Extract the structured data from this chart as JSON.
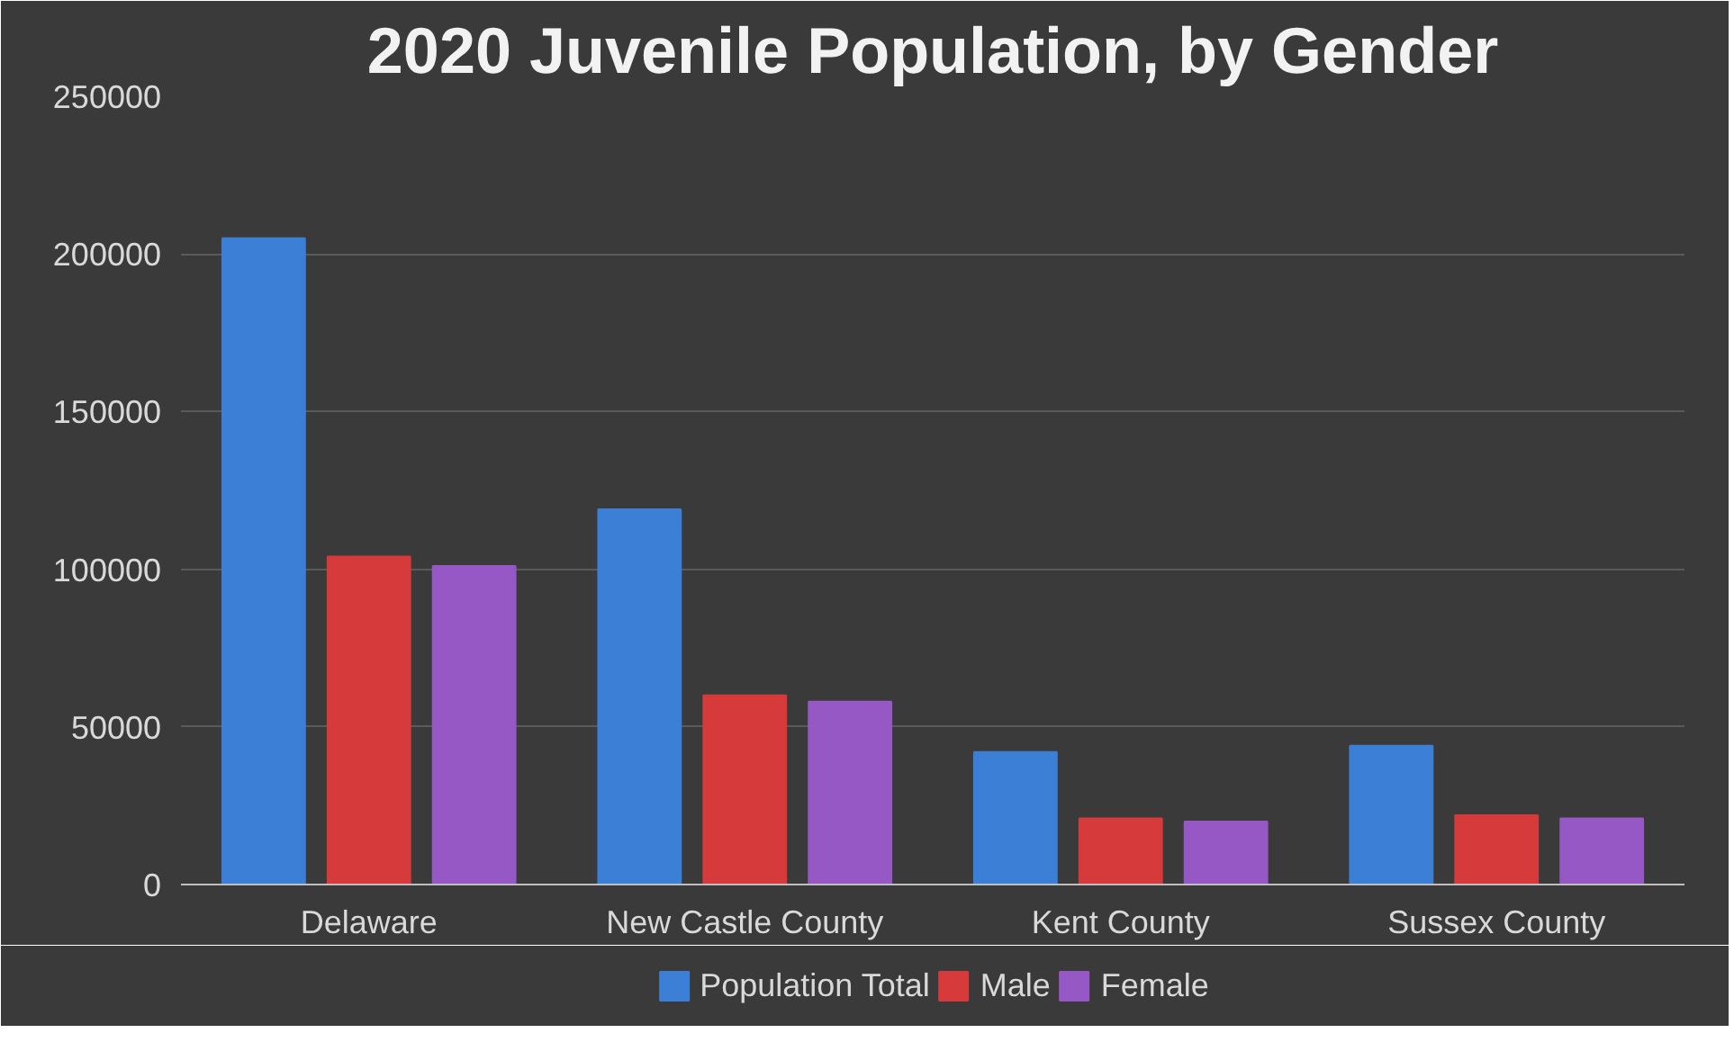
{
  "chart_data": {
    "type": "bar",
    "title": "2020 Juvenile Population, by Gender",
    "categories": [
      "Delaware",
      "New Castle County",
      "Kent County",
      "Sussex County"
    ],
    "series": [
      {
        "name": "Population Total",
        "color": "#3b7fd6",
        "values": [
          205000,
          119000,
          42000,
          44000
        ]
      },
      {
        "name": "Male",
        "color": "#d63a3a",
        "values": [
          104000,
          60000,
          21000,
          22000
        ]
      },
      {
        "name": "Female",
        "color": "#9558c4",
        "values": [
          101000,
          58000,
          20000,
          21000
        ]
      }
    ],
    "ylim": [
      0,
      250000
    ],
    "yticks": [
      0,
      50000,
      100000,
      150000,
      200000,
      250000
    ],
    "grid": "y",
    "legend": "bottom"
  }
}
